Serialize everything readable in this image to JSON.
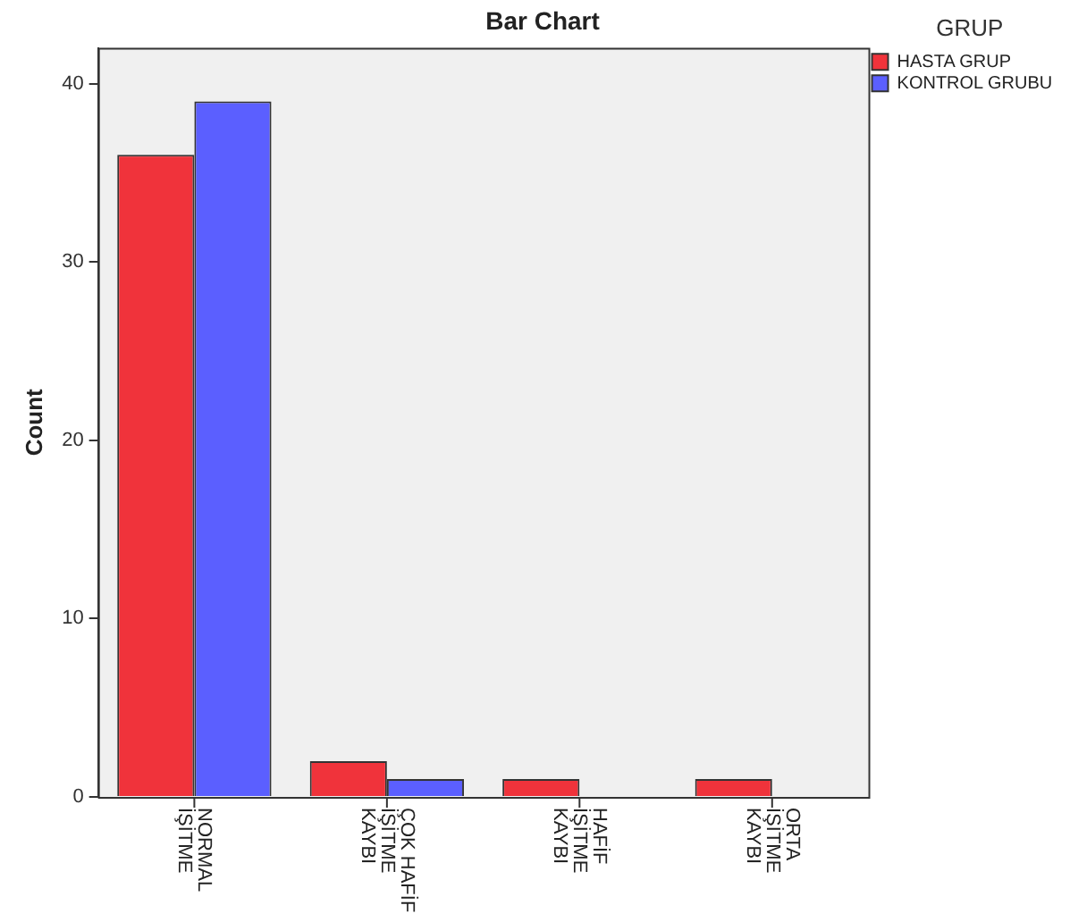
{
  "chart_data": {
    "type": "bar",
    "title": "Bar Chart",
    "ylabel": "Count",
    "legend_title": "GRUP",
    "categories": [
      "NORMAL İŞİTME",
      "ÇOK HAFİF İŞİTME KAYBI",
      "HAFİF İŞİTME KAYBI",
      "ORTA İŞİTME KAYBI"
    ],
    "series": [
      {
        "name": "HASTA GRUP",
        "color": "#f0333b",
        "values": [
          36,
          2,
          1,
          1
        ]
      },
      {
        "name": "KONTROL GRUBU",
        "color": "#5b5fff",
        "values": [
          39,
          1,
          0,
          0
        ]
      }
    ],
    "ylim": [
      0,
      42
    ],
    "yticks": [
      0,
      10,
      20,
      30,
      40
    ],
    "legend": "top right"
  }
}
